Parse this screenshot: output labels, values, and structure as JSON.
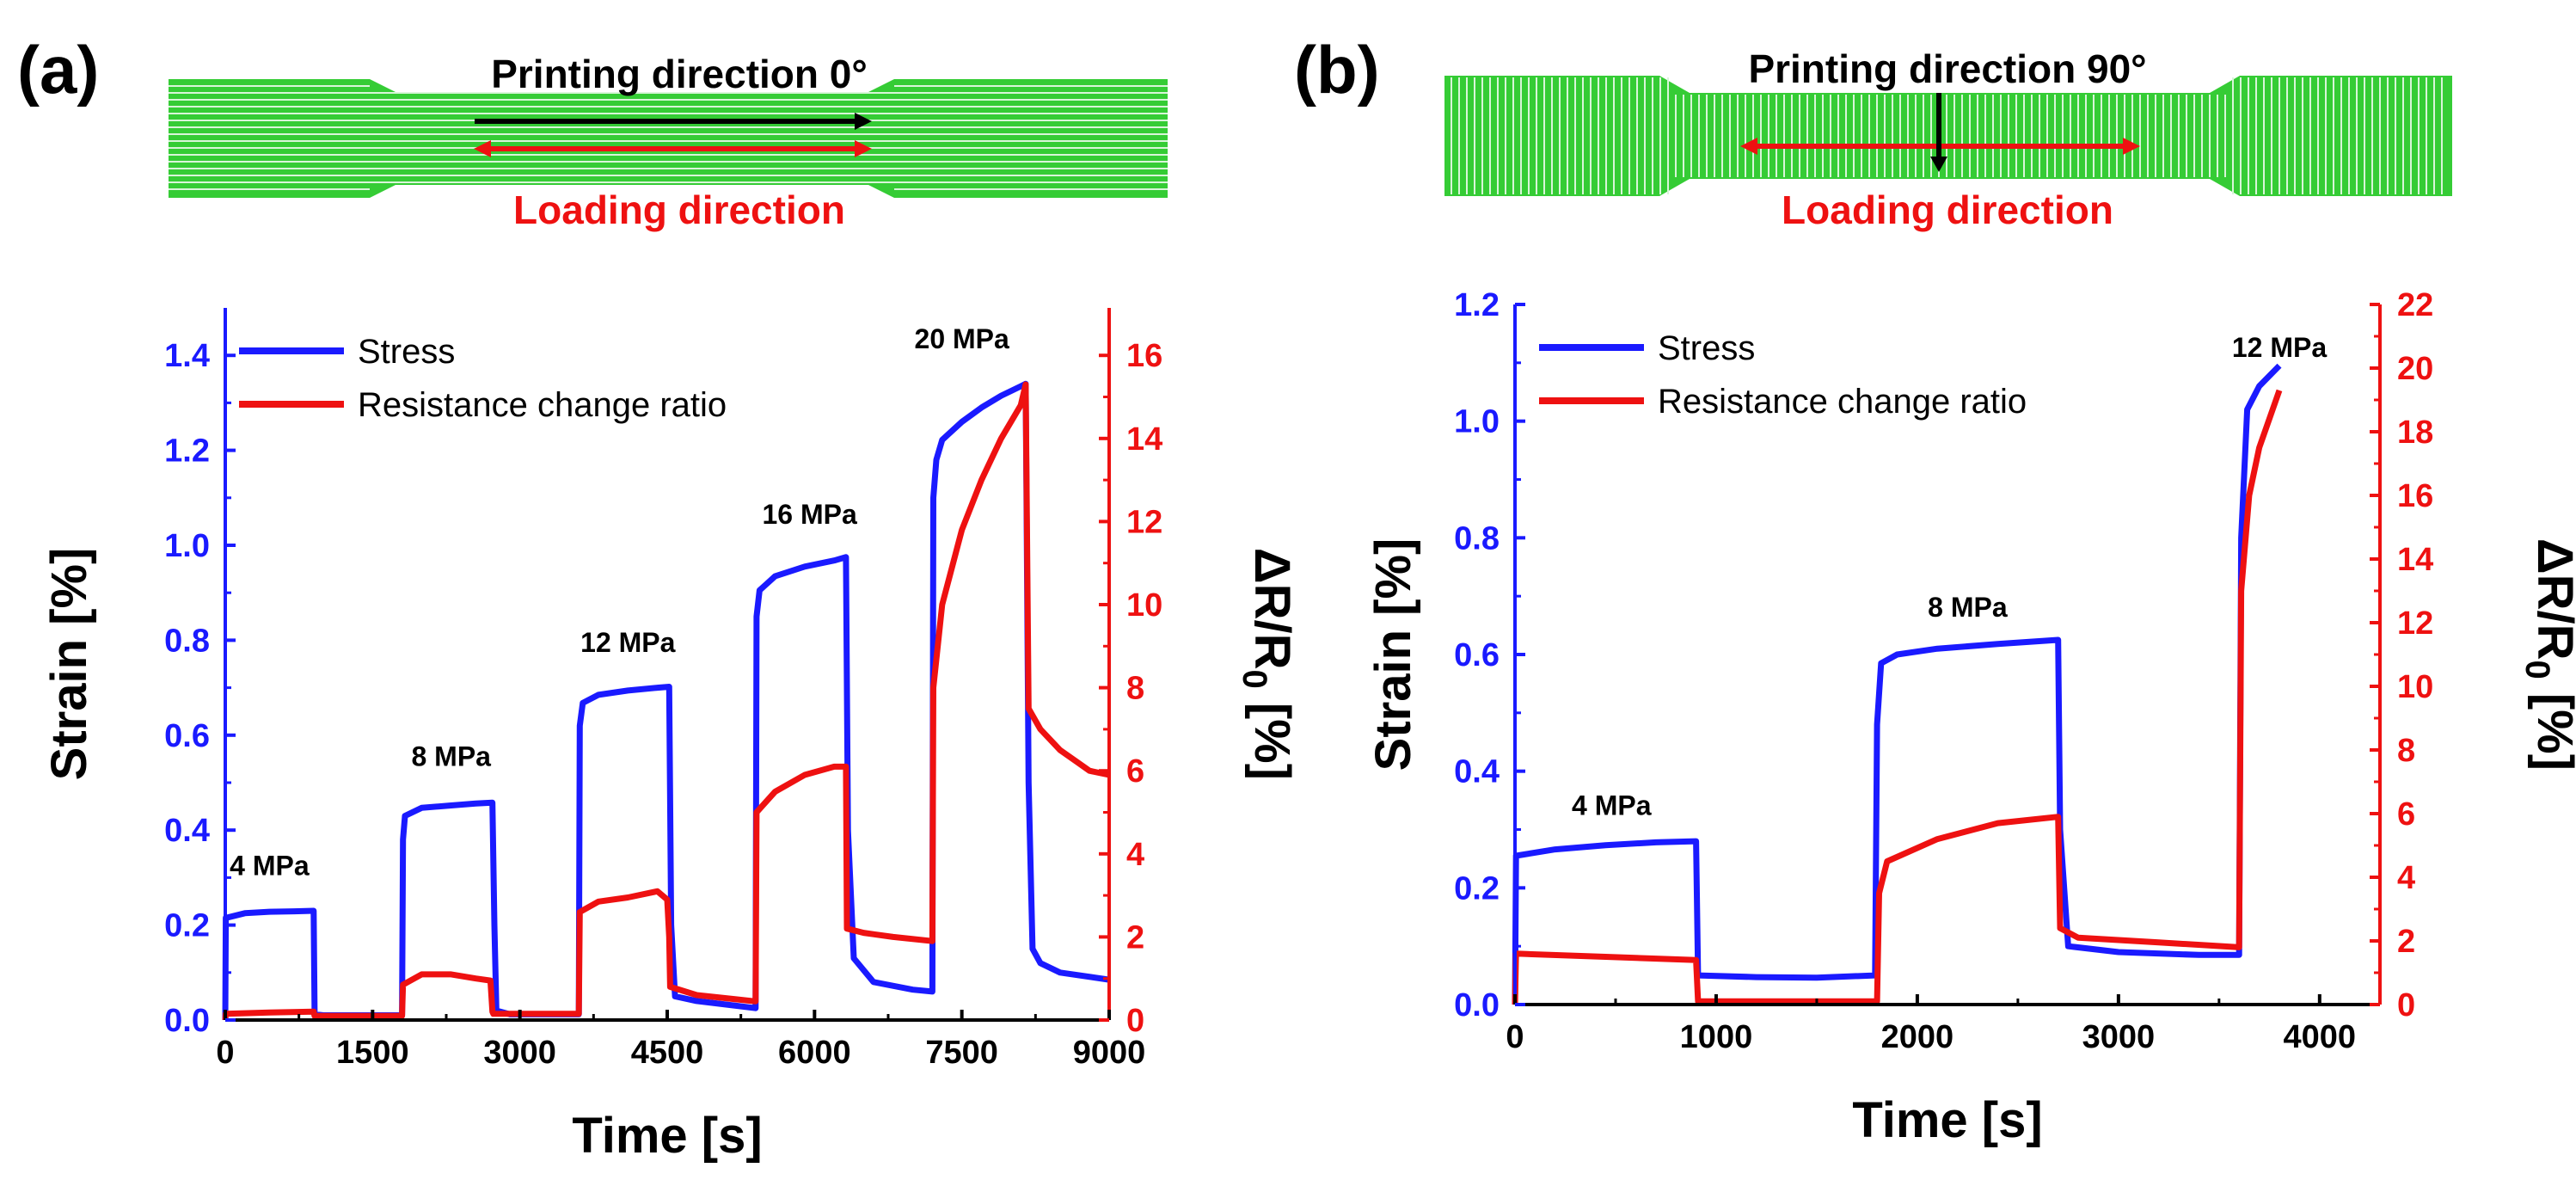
{
  "colors": {
    "stress": "#1a1aff",
    "resistance": "#ee1111",
    "specimen": "#35cc35",
    "specimen_line": "#d9f5d9",
    "axis": "#000000"
  },
  "panel_a": {
    "label": "(a)",
    "printing_direction": "Printing direction 0°",
    "loading_direction": "Loading direction"
  },
  "panel_b": {
    "label": "(b)",
    "printing_direction": "Printing direction 90°",
    "loading_direction": "Loading direction"
  },
  "chart_data": [
    {
      "id": "chart-a",
      "type": "line",
      "xlabel": "Time [s]",
      "ylabel": "Strain [%]",
      "y2label": "ΔR/R0 [%]",
      "xlim": [
        0,
        9000
      ],
      "ylim": [
        0,
        1.5
      ],
      "y2lim": [
        0,
        17.143
      ],
      "xticks": [
        0,
        1500,
        3000,
        4500,
        6000,
        7500,
        9000
      ],
      "yticks": [
        0.0,
        0.2,
        0.4,
        0.6,
        0.8,
        1.0,
        1.2,
        1.4
      ],
      "y2ticks": [
        0,
        2,
        4,
        6,
        8,
        10,
        12,
        14,
        16
      ],
      "legend": [
        "Stress",
        "Resistance change ratio"
      ],
      "legend_position": "top-left",
      "annotations": [
        {
          "text": "4 MPa",
          "x": 450,
          "y": 0.305
        },
        {
          "text": "8 MPa",
          "x": 2300,
          "y": 0.535
        },
        {
          "text": "12 MPa",
          "x": 4100,
          "y": 0.775
        },
        {
          "text": "16 MPa",
          "x": 5950,
          "y": 1.045
        },
        {
          "text": "20 MPa",
          "x": 7500,
          "y": 1.415
        }
      ],
      "series": [
        {
          "name": "Stress",
          "axis": "left",
          "x": [
            0,
            5,
            200,
            450,
            700,
            900,
            910,
            1000,
            1800,
            1810,
            1830,
            2000,
            2300,
            2550,
            2720,
            2740,
            2760,
            2900,
            3300,
            3600,
            3610,
            3640,
            3800,
            4100,
            4400,
            4520,
            4540,
            4580,
            4800,
            5200,
            5400,
            5410,
            5440,
            5600,
            5900,
            6200,
            6320,
            6340,
            6400,
            6600,
            7000,
            7200,
            7210,
            7240,
            7300,
            7500,
            7700,
            7900,
            8100,
            8150,
            8180,
            8220,
            8300,
            8500,
            9000
          ],
          "values": [
            0.0,
            0.215,
            0.225,
            0.228,
            0.229,
            0.23,
            0.012,
            0.01,
            0.01,
            0.38,
            0.43,
            0.447,
            0.452,
            0.456,
            0.458,
            0.2,
            0.02,
            0.012,
            0.012,
            0.012,
            0.62,
            0.668,
            0.685,
            0.694,
            0.7,
            0.702,
            0.2,
            0.05,
            0.04,
            0.03,
            0.025,
            0.85,
            0.905,
            0.935,
            0.955,
            0.968,
            0.975,
            0.4,
            0.13,
            0.08,
            0.064,
            0.06,
            1.1,
            1.18,
            1.222,
            1.26,
            1.29,
            1.315,
            1.335,
            1.34,
            0.5,
            0.15,
            0.12,
            0.1,
            0.085
          ]
        },
        {
          "name": "Resistance change ratio",
          "axis": "right",
          "x": [
            0,
            5,
            450,
            900,
            910,
            1800,
            1810,
            2000,
            2300,
            2550,
            2700,
            2720,
            2730,
            3600,
            3610,
            3800,
            4100,
            4400,
            4500,
            4520,
            4530,
            4800,
            5200,
            5400,
            5410,
            5600,
            5900,
            6200,
            6320,
            6330,
            6500,
            6800,
            7200,
            7210,
            7300,
            7500,
            7700,
            7900,
            8100,
            8150,
            8180,
            8300,
            8500,
            8800,
            9000
          ],
          "values": [
            0.0,
            0.15,
            0.18,
            0.2,
            0.1,
            0.1,
            0.85,
            1.1,
            1.1,
            1.0,
            0.95,
            0.2,
            0.15,
            0.15,
            2.6,
            2.85,
            2.95,
            3.1,
            2.9,
            2.0,
            0.8,
            0.6,
            0.5,
            0.45,
            5.0,
            5.5,
            5.9,
            6.1,
            6.1,
            2.2,
            2.1,
            2.0,
            1.9,
            8.0,
            10.0,
            11.8,
            13.0,
            14.0,
            14.8,
            15.3,
            7.5,
            7.0,
            6.5,
            6.0,
            5.9
          ]
        }
      ]
    },
    {
      "id": "chart-b",
      "type": "line",
      "xlabel": "Time [s]",
      "ylabel": "Strain [%]",
      "y2label": "ΔR/R0 [%]",
      "xlim": [
        0,
        4300
      ],
      "ylim": [
        0,
        1.2
      ],
      "y2lim": [
        0,
        22
      ],
      "xticks": [
        0,
        1000,
        2000,
        3000,
        4000
      ],
      "yticks": [
        0.0,
        0.2,
        0.4,
        0.6,
        0.8,
        1.0,
        1.2
      ],
      "y2ticks": [
        0,
        2,
        4,
        6,
        8,
        10,
        12,
        14,
        16,
        18,
        20,
        22
      ],
      "legend": [
        "Stress",
        "Resistance change ratio"
      ],
      "legend_position": "top-left",
      "annotations": [
        {
          "text": "4 MPa",
          "x": 480,
          "y": 0.325
        },
        {
          "text": "8 MPa",
          "x": 2250,
          "y": 0.665
        },
        {
          "text": "12 MPa",
          "x": 3800,
          "y": 1.11
        }
      ],
      "series": [
        {
          "name": "Stress",
          "axis": "left",
          "x": [
            0,
            5,
            200,
            450,
            700,
            900,
            910,
            1200,
            1500,
            1790,
            1800,
            1820,
            1900,
            2100,
            2400,
            2700,
            2710,
            2750,
            3000,
            3400,
            3600,
            3610,
            3640,
            3700,
            3800
          ],
          "values": [
            0.0,
            0.255,
            0.266,
            0.273,
            0.278,
            0.28,
            0.05,
            0.047,
            0.046,
            0.05,
            0.48,
            0.585,
            0.6,
            0.61,
            0.618,
            0.625,
            0.3,
            0.1,
            0.09,
            0.085,
            0.085,
            0.8,
            1.02,
            1.06,
            1.095
          ]
        },
        {
          "name": "Resistance change ratio",
          "axis": "right",
          "x": [
            0,
            5,
            450,
            900,
            910,
            1300,
            1800,
            1810,
            1850,
            2100,
            2400,
            2700,
            2710,
            2800,
            3200,
            3600,
            3610,
            3650,
            3700,
            3800
          ],
          "values": [
            0.0,
            1.6,
            1.5,
            1.4,
            0.1,
            0.1,
            0.1,
            3.5,
            4.5,
            5.2,
            5.7,
            5.9,
            2.4,
            2.1,
            1.95,
            1.8,
            13.0,
            16.0,
            17.5,
            19.3
          ]
        }
      ]
    }
  ]
}
